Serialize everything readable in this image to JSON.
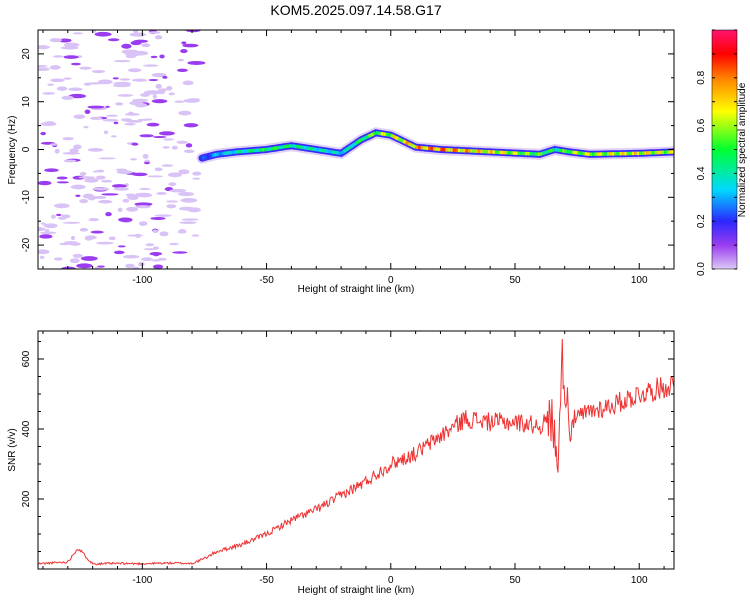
{
  "title": "KOM5.2025.097.14.58.G17",
  "chart_data": [
    {
      "type": "heatmap",
      "xlabel": "Height of straight line (km)",
      "ylabel": "Frequency (Hz)",
      "xlim": [
        -142,
        114
      ],
      "ylim": [
        -25,
        25
      ],
      "xticks": [
        -100,
        -50,
        0,
        50,
        100
      ],
      "yticks": [
        -20,
        -10,
        0,
        10,
        20
      ],
      "colorbar": {
        "label": "Normalized spectral amplitude",
        "range": [
          0,
          1
        ],
        "ticks": [
          0.0,
          0.2,
          0.4,
          0.6,
          0.8
        ]
      },
      "ridge": {
        "x": [
          -76,
          -70,
          -62,
          -50,
          -40,
          -30,
          -20,
          -12,
          -6,
          0,
          10,
          20,
          40,
          60,
          66,
          72,
          80,
          100,
          114
        ],
        "freq": [
          -1.8,
          -1.0,
          -0.5,
          0.0,
          0.8,
          0.0,
          -0.8,
          2.0,
          3.5,
          3.0,
          0.5,
          0.0,
          -0.5,
          -1.0,
          0.0,
          -0.5,
          -1.0,
          -0.8,
          -0.5
        ],
        "amp": [
          0.25,
          0.35,
          0.45,
          0.55,
          0.5,
          0.45,
          0.4,
          0.55,
          0.65,
          0.7,
          0.85,
          0.9,
          0.75,
          0.6,
          0.5,
          0.65,
          0.7,
          0.75,
          0.7
        ]
      },
      "noise_region": {
        "x_from": -142,
        "x_to": -78,
        "amp": 0.05
      }
    },
    {
      "type": "line",
      "xlabel": "Height of straight line (km)",
      "ylabel": "SNR (v/v)",
      "xlim": [
        -142,
        114
      ],
      "ylim": [
        0,
        680
      ],
      "xticks": [
        -100,
        -50,
        0,
        50,
        100
      ],
      "yticks": [
        200,
        400,
        600
      ],
      "color": "#ee3333",
      "series": [
        {
          "x": [
            -142,
            -135,
            -130,
            -126,
            -120,
            -110,
            -100,
            -90,
            -80,
            -75,
            -70,
            -60,
            -50,
            -40,
            -30,
            -20,
            -10,
            0,
            10,
            20,
            30,
            40,
            50,
            60,
            65,
            67,
            69,
            72,
            80,
            90,
            100,
            110,
            114
          ],
          "y": [
            15,
            18,
            20,
            60,
            15,
            16,
            15,
            17,
            16,
            30,
            50,
            70,
            100,
            140,
            170,
            210,
            250,
            300,
            330,
            380,
            430,
            420,
            420,
            410,
            430,
            300,
            600,
            420,
            450,
            470,
            500,
            520,
            530
          ]
        }
      ]
    }
  ]
}
